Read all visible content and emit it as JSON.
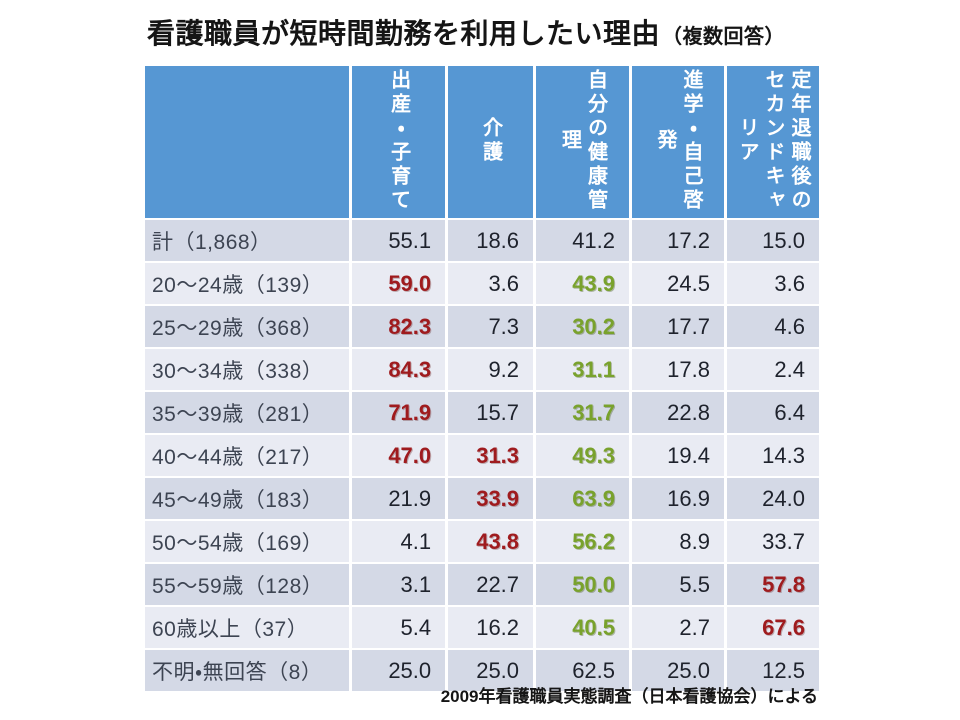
{
  "slide": {
    "title_main": "看護職員が短時間勤務を利用したい理由",
    "title_note": "（複数回答）"
  },
  "colors": {
    "header_bg": "#5697d3",
    "row_dark": "#d4d9e6",
    "row_light": "#e9ebf3",
    "highlight_red": "#9f1b1e",
    "highlight_green": "#79a22c"
  },
  "chart_data": {
    "type": "table",
    "title": "看護職員が短時間勤務を利用したい理由（複数回答）",
    "unit": "%",
    "columns": [
      "出産・子育て",
      "介護",
      "自分の健康管理",
      "進学・自己啓発",
      "定年退職後のセカンドキャリア"
    ],
    "rows": [
      {
        "label": "計（1,868）",
        "values": [
          55.1,
          18.6,
          41.2,
          17.2,
          15.0
        ],
        "display": [
          "55.1",
          "18.6",
          "41.2",
          "17.2",
          "15.0"
        ],
        "highlights": [
          null,
          null,
          null,
          null,
          null
        ]
      },
      {
        "label": "20～24歳（139）",
        "values": [
          59.0,
          3.6,
          43.9,
          24.5,
          3.6
        ],
        "display": [
          "59.0",
          "3.6",
          "43.9",
          "24.5",
          "3.6"
        ],
        "highlights": [
          "red",
          null,
          "green",
          null,
          null
        ]
      },
      {
        "label": "25～29歳（368）",
        "values": [
          82.3,
          7.3,
          30.2,
          17.7,
          4.6
        ],
        "display": [
          "82.3",
          "7.3",
          "30.2",
          "17.7",
          "4.6"
        ],
        "highlights": [
          "red",
          null,
          "green",
          null,
          null
        ]
      },
      {
        "label": "30～34歳（338）",
        "values": [
          84.3,
          9.2,
          31.1,
          17.8,
          2.4
        ],
        "display": [
          "84.3",
          "9.2",
          "31.1",
          "17.8",
          "2.4"
        ],
        "highlights": [
          "red",
          null,
          "green",
          null,
          null
        ]
      },
      {
        "label": "35～39歳（281）",
        "values": [
          71.9,
          15.7,
          31.7,
          22.8,
          6.4
        ],
        "display": [
          "71.9",
          "15.7",
          "31.7",
          "22.8",
          "6.4"
        ],
        "highlights": [
          "red",
          null,
          "green",
          null,
          null
        ]
      },
      {
        "label": "40～44歳（217）",
        "values": [
          47.0,
          31.3,
          49.3,
          19.4,
          14.3
        ],
        "display": [
          "47.0",
          "31.3",
          "49.3",
          "19.4",
          "14.3"
        ],
        "highlights": [
          "red",
          "red",
          "green",
          null,
          null
        ]
      },
      {
        "label": "45～49歳（183）",
        "values": [
          21.9,
          33.9,
          63.9,
          16.9,
          24.0
        ],
        "display": [
          "21.9",
          "33.9",
          "63.9",
          "16.9",
          "24.0"
        ],
        "highlights": [
          null,
          "red",
          "green",
          null,
          null
        ]
      },
      {
        "label": "50～54歳（169）",
        "values": [
          4.1,
          43.8,
          56.2,
          8.9,
          33.7
        ],
        "display": [
          "4.1",
          "43.8",
          "56.2",
          "8.9",
          "33.7"
        ],
        "highlights": [
          null,
          "red",
          "green",
          null,
          null
        ]
      },
      {
        "label": "55～59歳（128）",
        "values": [
          3.1,
          22.7,
          50.0,
          5.5,
          57.8
        ],
        "display": [
          "3.1",
          "22.7",
          "50.0",
          "5.5",
          "57.8"
        ],
        "highlights": [
          null,
          null,
          "green",
          null,
          "red"
        ]
      },
      {
        "label": "60歳以上（37）",
        "values": [
          5.4,
          16.2,
          40.5,
          2.7,
          67.6
        ],
        "display": [
          "5.4",
          "16.2",
          "40.5",
          "2.7",
          "67.6"
        ],
        "highlights": [
          null,
          null,
          "green",
          null,
          "red"
        ]
      },
      {
        "label": "不明・無回答（8）",
        "values": [
          25.0,
          25.0,
          62.5,
          25.0,
          12.5
        ],
        "display": [
          "25.0",
          "25.0",
          "62.5",
          "25.0",
          "12.5"
        ],
        "highlights": [
          null,
          null,
          null,
          null,
          null
        ]
      }
    ],
    "source": "2009年看護職員実態調査（日本看護協会）による"
  }
}
